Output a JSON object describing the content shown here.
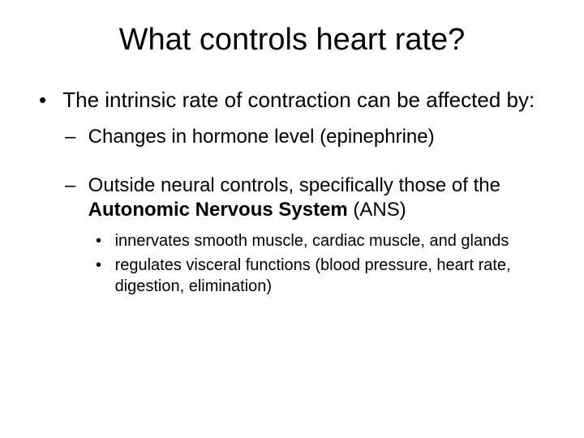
{
  "title": "What controls heart rate?",
  "l1": {
    "text": "The intrinsic rate of contraction can be affected by:"
  },
  "l2a": {
    "text": "Changes in hormone level (epinephrine)"
  },
  "l2b": {
    "pre": "Outside neural controls, specifically those of the ",
    "bold": "Autonomic Nervous System",
    "post": " (ANS)"
  },
  "l3a": {
    "text": "innervates smooth muscle, cardiac muscle, and glands"
  },
  "l3b": {
    "text": "regulates visceral functions (blood pressure, heart rate, digestion, elimination)"
  },
  "colors": {
    "background": "#ffffff",
    "text": "#000000"
  },
  "typography": {
    "title_fontsize": 38,
    "l1_fontsize": 26,
    "l2_fontsize": 24,
    "l3_fontsize": 20,
    "font_family": "Arial"
  }
}
